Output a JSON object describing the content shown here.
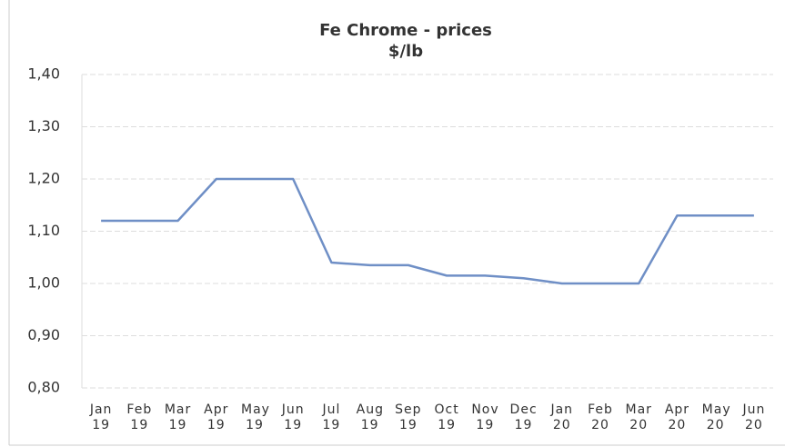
{
  "chart_data": {
    "type": "line",
    "title": "Fe Chrome - prices",
    "subtitle": "$/lb",
    "categories": [
      "Jan 19",
      "Feb 19",
      "Mar 19",
      "Apr 19",
      "May 19",
      "Jun 19",
      "Jul 19",
      "Aug 19",
      "Sep 19",
      "Oct 19",
      "Nov 19",
      "Dec 19",
      "Jan 20",
      "Feb 20",
      "Mar 20",
      "Apr 20",
      "May 20",
      "Jun 20"
    ],
    "series": [
      {
        "name": "Fe Chrome",
        "color": "#6f8fc6",
        "values": [
          1.12,
          1.12,
          1.12,
          1.2,
          1.2,
          1.2,
          1.04,
          1.035,
          1.035,
          1.015,
          1.015,
          1.01,
          1.0,
          1.0,
          1.0,
          1.13,
          1.13,
          1.13
        ]
      }
    ],
    "ylim": [
      0.8,
      1.4
    ],
    "yticks": [
      {
        "value": 0.8,
        "label": "0,80"
      },
      {
        "value": 0.9,
        "label": "0,90"
      },
      {
        "value": 1.0,
        "label": "1,00"
      },
      {
        "value": 1.1,
        "label": "1,10"
      },
      {
        "value": 1.2,
        "label": "1,20"
      },
      {
        "value": 1.3,
        "label": "1,30"
      },
      {
        "value": 1.4,
        "label": "1,40"
      }
    ],
    "grid": true
  }
}
